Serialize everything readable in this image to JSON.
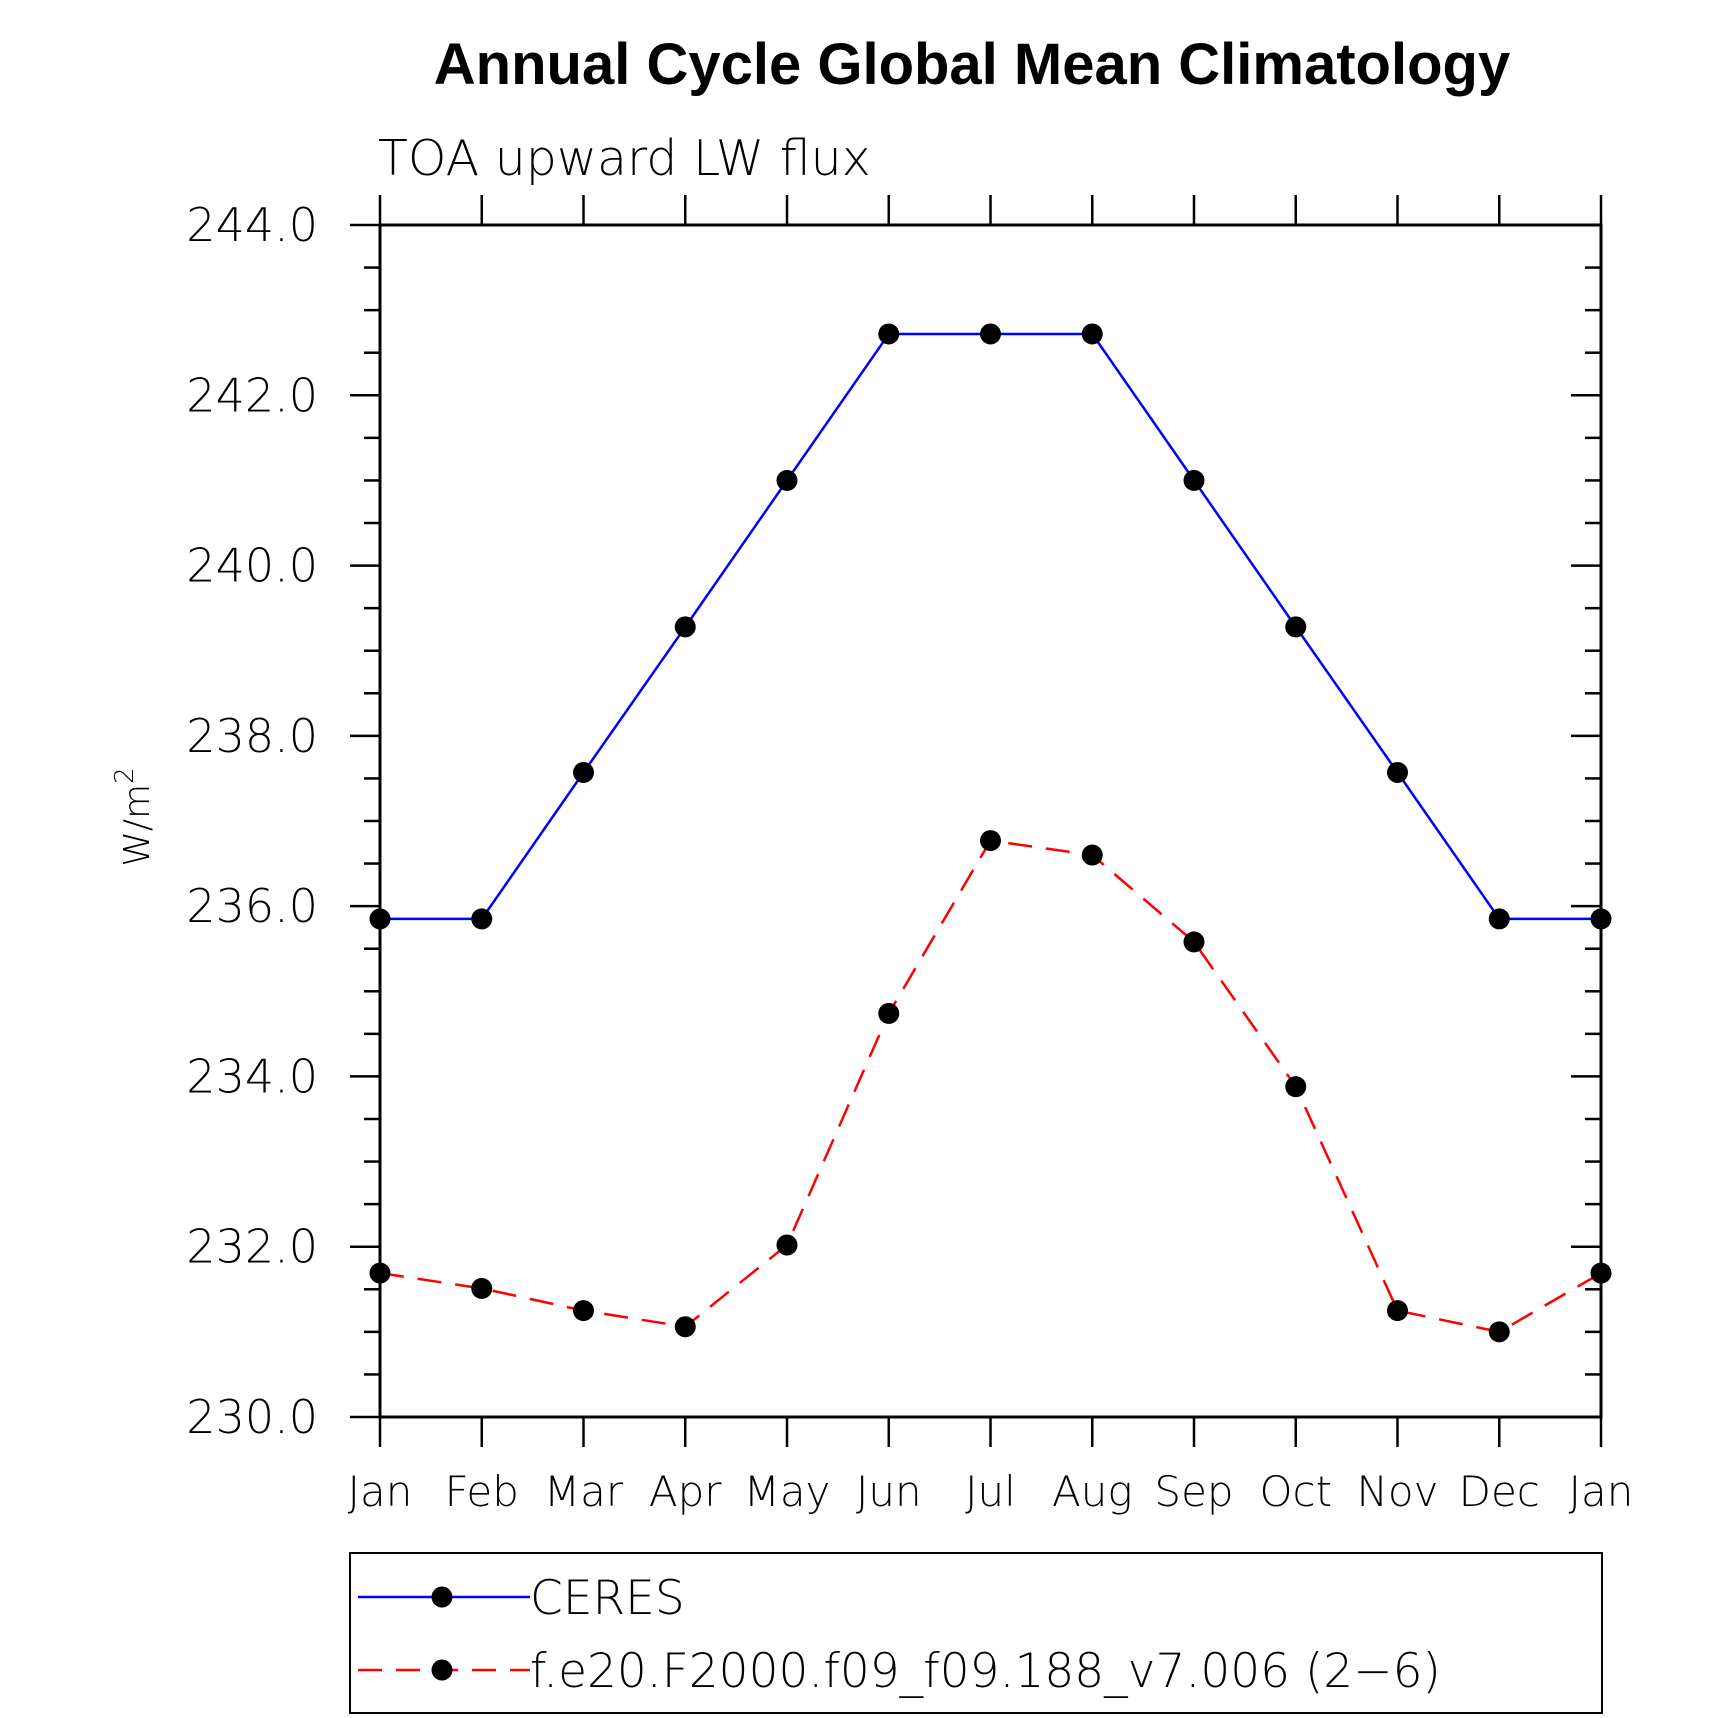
{
  "chart_data": {
    "type": "line",
    "title": "Annual Cycle Global Mean Climatology",
    "subtitle": "TOA upward LW flux",
    "ylabel": "W/m",
    "ylabel_superscript": "2",
    "xlabel": "",
    "categories": [
      "Jan",
      "Feb",
      "Mar",
      "Apr",
      "May",
      "Jun",
      "Jul",
      "Aug",
      "Sep",
      "Oct",
      "Nov",
      "Dec",
      "Jan"
    ],
    "ylim": [
      230.0,
      244.0
    ],
    "yticks": [
      "230.0",
      "232.0",
      "234.0",
      "236.0",
      "238.0",
      "240.0",
      "242.0",
      "244.0"
    ],
    "grid": false,
    "legend_position": "bottom",
    "series": [
      {
        "name": "CERES",
        "color": "#0000ff",
        "dash": "solid",
        "values": [
          235.85,
          235.85,
          237.57,
          239.28,
          241.0,
          242.72,
          242.72,
          242.72,
          241.0,
          239.28,
          237.57,
          235.85,
          235.85
        ]
      },
      {
        "name": "f.e20.F2000.f09_f09.188_v7.006 (2−6)",
        "color": "#ff0000",
        "dash": "dashed",
        "values": [
          231.69,
          231.51,
          231.25,
          231.06,
          232.02,
          234.74,
          236.77,
          236.6,
          235.58,
          233.88,
          231.25,
          231.0,
          231.69
        ]
      }
    ]
  }
}
